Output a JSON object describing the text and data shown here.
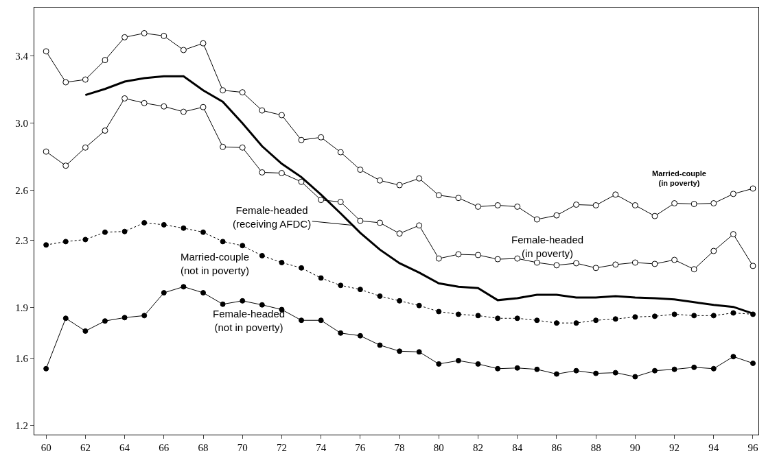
{
  "chart_data": {
    "type": "line",
    "x": [
      60,
      61,
      62,
      63,
      64,
      65,
      66,
      67,
      68,
      69,
      70,
      71,
      72,
      73,
      74,
      75,
      76,
      77,
      78,
      79,
      80,
      81,
      82,
      83,
      84,
      85,
      86,
      87,
      88,
      89,
      90,
      91,
      92,
      93,
      94,
      95,
      96
    ],
    "series": [
      {
        "color": "#000000",
        "marker": "circle-open",
        "line_style": "solid",
        "values": [
          3.427,
          3.243,
          3.259,
          3.375,
          3.511,
          3.535,
          3.519,
          3.435,
          3.475,
          3.195,
          3.183,
          3.075,
          3.047,
          2.899,
          2.915,
          2.826,
          2.722,
          2.658,
          2.63,
          2.67,
          2.57,
          2.554,
          2.502,
          2.51,
          2.502,
          2.426,
          2.45,
          2.514,
          2.51,
          2.574,
          2.51,
          2.446,
          2.522,
          2.518,
          2.522,
          2.578,
          2.61
        ]
      },
      {
        "color": "#000000",
        "marker": "circle-open",
        "line_style": "solid",
        "values": [
          2.83,
          2.746,
          2.854,
          2.955,
          3.147,
          3.119,
          3.099,
          3.067,
          3.095,
          2.858,
          2.854,
          2.706,
          2.702,
          2.65,
          2.542,
          2.53,
          2.418,
          2.406,
          2.342,
          2.39,
          2.193,
          2.218,
          2.214,
          2.189,
          2.193,
          2.169,
          2.153,
          2.165,
          2.137,
          2.157,
          2.169,
          2.161,
          2.185,
          2.129,
          2.238,
          2.338,
          2.149
        ]
      },
      {
        "color": "#000000",
        "marker": "none",
        "line_style": "solid",
        "values": [
          null,
          null,
          3.167,
          3.203,
          3.247,
          3.267,
          3.279,
          3.279,
          3.195,
          3.127,
          2.999,
          2.862,
          2.758,
          2.678,
          2.574,
          2.462,
          2.346,
          2.246,
          2.165,
          2.109,
          2.045,
          2.025,
          2.017,
          1.945,
          1.957,
          1.977,
          1.977,
          1.961,
          1.961,
          1.969,
          1.961,
          1.957,
          1.949,
          1.933,
          1.917,
          1.905,
          1.865
        ]
      },
      {
        "color": "#000000",
        "marker": "circle",
        "line_style": "dotted",
        "values": [
          2.274,
          2.294,
          2.306,
          2.35,
          2.354,
          2.406,
          2.394,
          2.374,
          2.35,
          2.294,
          2.27,
          2.21,
          2.169,
          2.137,
          2.077,
          2.033,
          2.009,
          1.969,
          1.941,
          1.913,
          1.877,
          1.861,
          1.853,
          1.837,
          1.837,
          1.825,
          1.809,
          1.809,
          1.825,
          1.833,
          1.845,
          1.849,
          1.861,
          1.853,
          1.853,
          1.869,
          1.861
        ]
      },
      {
        "color": "#000000",
        "marker": "circle",
        "line_style": "solid",
        "values": [
          1.537,
          1.837,
          1.761,
          1.821,
          1.841,
          1.853,
          1.989,
          2.025,
          1.989,
          1.921,
          1.941,
          1.917,
          1.889,
          1.825,
          1.825,
          1.749,
          1.733,
          1.677,
          1.641,
          1.637,
          1.565,
          1.585,
          1.565,
          1.537,
          1.541,
          1.533,
          1.505,
          1.525,
          1.509,
          1.513,
          1.489,
          1.525,
          1.533,
          1.545,
          1.537,
          1.609,
          1.569
        ]
      }
    ],
    "xlim": [
      59.4,
      96.28
    ],
    "xticks": [
      60,
      62,
      64,
      66,
      68,
      70,
      72,
      74,
      76,
      78,
      80,
      82,
      84,
      86,
      88,
      90,
      92,
      94,
      96
    ],
    "ylim": [
      1.144,
      3.688
    ],
    "yticks": [
      1.2,
      1.6,
      1.9,
      2.3,
      2.6,
      {
        "value": 3.0,
        "label": "3.0"
      },
      3.4
    ],
    "annotations": [
      "**Married-couple\n(in poverty)**",
      "Female-headed\n(in poverty)",
      {
        "text": "Female-headed\n(receiving AFDC)",
        "x": 75.7,
        "y": 2.39
      },
      "Married-couple\n(not in poverty)",
      "Female-headed\n(not in poverty)"
    ]
  }
}
